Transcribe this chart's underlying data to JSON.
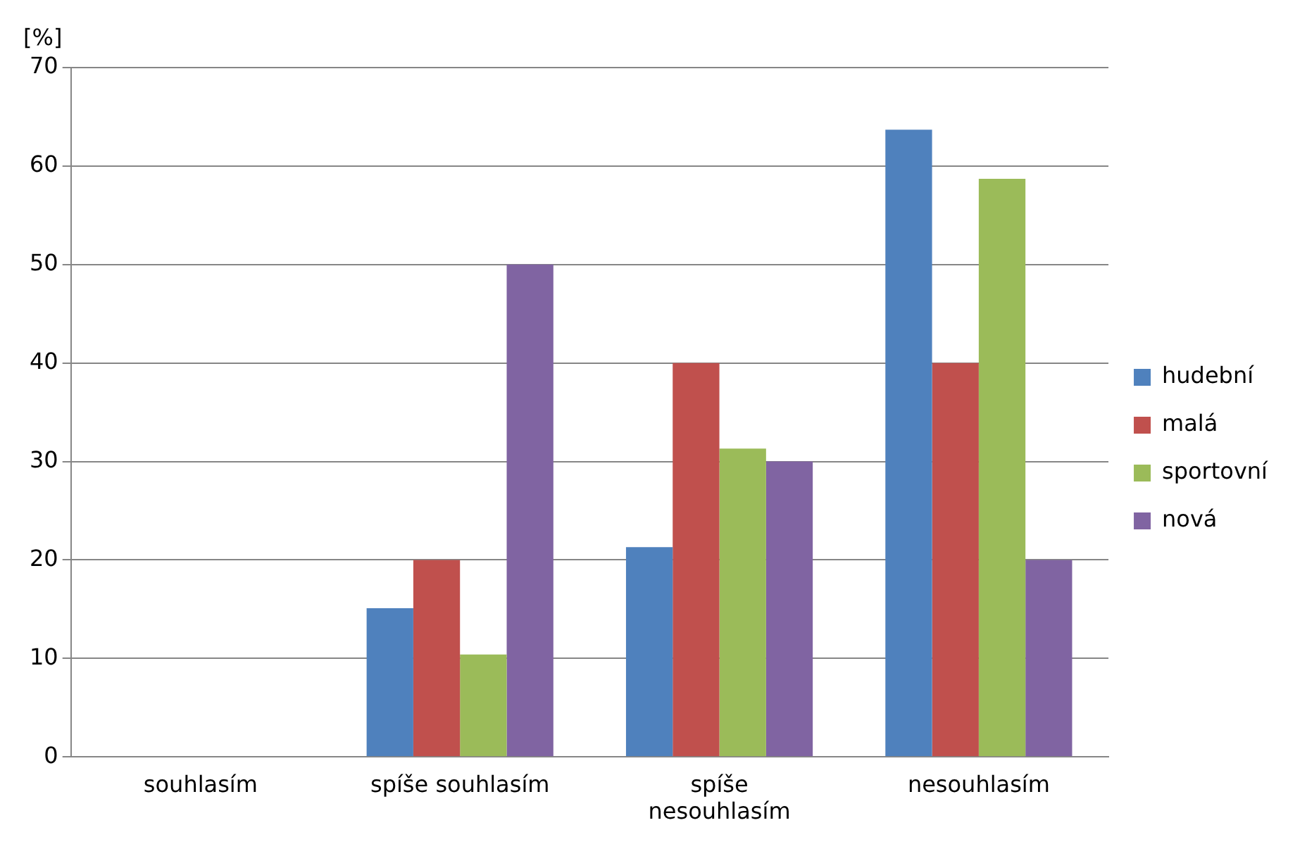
{
  "chart_data": {
    "type": "bar",
    "ylabel": "[%]",
    "categories": [
      "souhlasím",
      "spíše souhlasím",
      "spíše nesouhlasím",
      "nesouhlasím"
    ],
    "series": [
      {
        "name": "hudební",
        "color": "#4f81bd",
        "values": [
          0,
          15.1,
          21.3,
          63.7
        ]
      },
      {
        "name": "malá",
        "color": "#c0504d",
        "values": [
          0,
          20,
          40,
          40
        ]
      },
      {
        "name": "sportovní",
        "color": "#9bbb59",
        "values": [
          0,
          10.4,
          31.3,
          58.7
        ]
      },
      {
        "name": "nová",
        "color": "#8064a2",
        "values": [
          0,
          50,
          30,
          20
        ]
      }
    ],
    "ylim": [
      0,
      70
    ],
    "yticks": [
      0,
      10,
      20,
      30,
      40,
      50,
      60,
      70
    ],
    "grid": "y",
    "legend": "right"
  }
}
